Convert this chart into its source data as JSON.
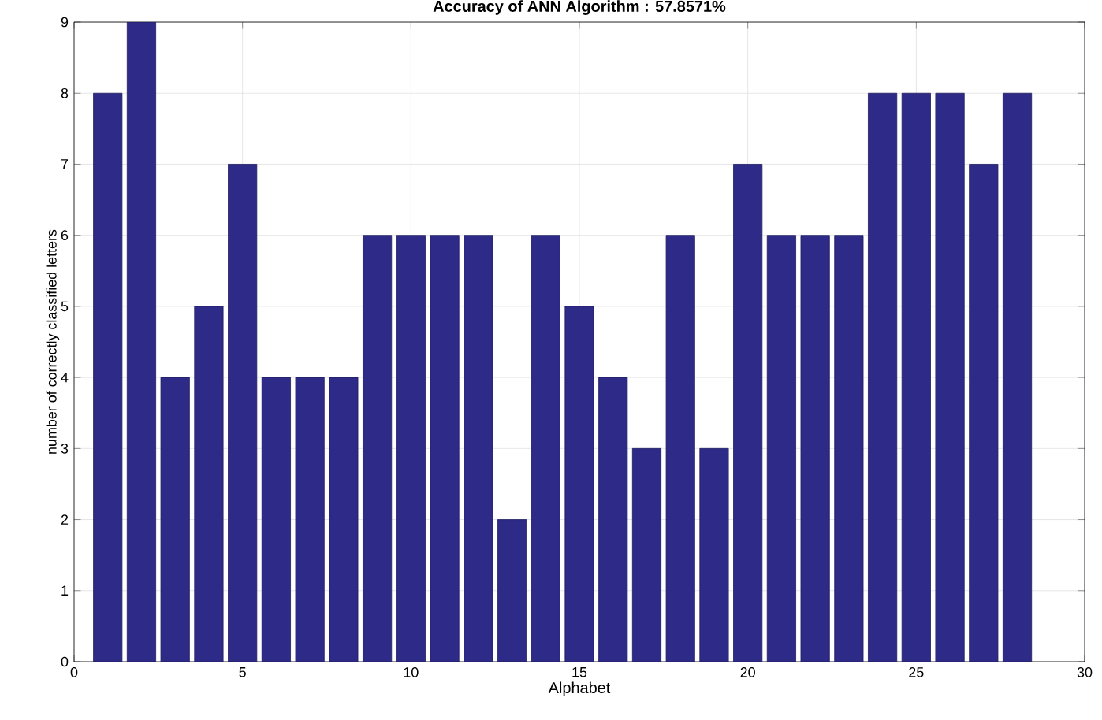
{
  "chart_data": {
    "type": "bar",
    "title": "Accuracy of ANN Algorithm : 57.8571%",
    "xlabel": "Alphabet",
    "ylabel": "number of correctly classified letters",
    "x": [
      1,
      2,
      3,
      4,
      5,
      6,
      7,
      8,
      9,
      10,
      11,
      12,
      13,
      14,
      15,
      16,
      17,
      18,
      19,
      20,
      21,
      22,
      23,
      24,
      25,
      26,
      27,
      28
    ],
    "values": [
      8,
      9,
      4,
      5,
      7,
      4,
      4,
      4,
      6,
      6,
      6,
      6,
      2,
      6,
      5,
      4,
      3,
      6,
      3,
      7,
      6,
      6,
      6,
      8,
      8,
      8,
      7,
      8
    ],
    "color": "#2e2a87",
    "xlim": [
      0,
      30
    ],
    "xticks": [
      0,
      5,
      10,
      15,
      20,
      25,
      30
    ],
    "ylim": [
      0,
      9
    ],
    "yticks": [
      0,
      1,
      2,
      3,
      4,
      5,
      6,
      7,
      8,
      9
    ],
    "grid": true
  }
}
